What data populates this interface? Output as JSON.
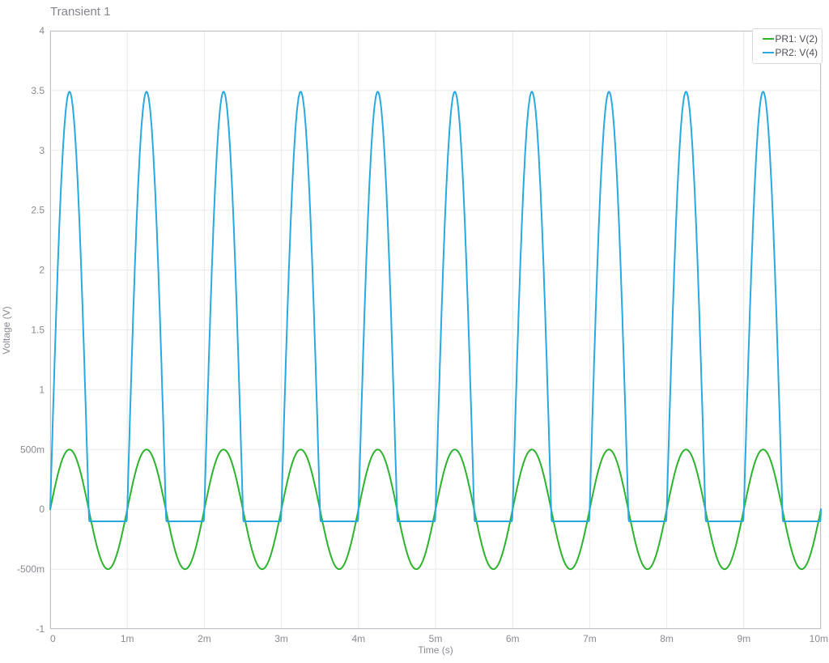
{
  "window": {
    "background": "#ffffff"
  },
  "chart_data": {
    "type": "line",
    "title": "Transient 1",
    "xlabel": "Time (s)",
    "ylabel": "Voltage (V)",
    "xlim": [
      0,
      0.01
    ],
    "ylim": [
      -1,
      4
    ],
    "grid": true,
    "legend_position": "top-right",
    "x_ticks": [
      {
        "v": 0.0,
        "label": "0"
      },
      {
        "v": 0.001,
        "label": "1m"
      },
      {
        "v": 0.002,
        "label": "2m"
      },
      {
        "v": 0.003,
        "label": "3m"
      },
      {
        "v": 0.004,
        "label": "4m"
      },
      {
        "v": 0.005,
        "label": "5m"
      },
      {
        "v": 0.006,
        "label": "6m"
      },
      {
        "v": 0.007,
        "label": "7m"
      },
      {
        "v": 0.008,
        "label": "8m"
      },
      {
        "v": 0.009,
        "label": "9m"
      },
      {
        "v": 0.01,
        "label": "10m"
      }
    ],
    "y_ticks": [
      {
        "v": -1.0,
        "label": "-1"
      },
      {
        "v": -0.5,
        "label": "-500m"
      },
      {
        "v": 0.0,
        "label": "0"
      },
      {
        "v": 0.5,
        "label": "500m"
      },
      {
        "v": 1.0,
        "label": "1"
      },
      {
        "v": 1.5,
        "label": "1.5"
      },
      {
        "v": 2.0,
        "label": "2"
      },
      {
        "v": 2.5,
        "label": "2.5"
      },
      {
        "v": 3.0,
        "label": "3"
      },
      {
        "v": 3.5,
        "label": "3.5"
      },
      {
        "v": 4.0,
        "label": "4"
      }
    ],
    "series": [
      {
        "name": "PR1: V(2)",
        "color": "#2db32d",
        "waveform": "sine",
        "amplitude_v": 0.5,
        "frequency_hz": 1000,
        "phase_deg": 0,
        "offset_v": 0,
        "description": "500 mV amplitude, 1 kHz sine wave, 10 periods over 0-10 ms"
      },
      {
        "name": "PR2: V(4)",
        "color": "#29a9e2",
        "waveform": "clipped-sine",
        "amplitude_v": 3.49,
        "frequency_hz": 1000,
        "phase_deg": 0,
        "offset_v": 0,
        "clip_min_v": -0.1,
        "knee_v": 0.03,
        "description": "Amplified sine, 3.49 V peaks in phase with PR1, bottom clipped flat at about -100 mV"
      }
    ]
  },
  "colors": {
    "background": "#ffffff",
    "grid": "#eaeaed",
    "axis": "#c1c1c7",
    "tick_label": "#8a8a93",
    "title_text": "#84868e",
    "legend_text": "#4d4d57",
    "legend_border": "#d9d9de"
  }
}
